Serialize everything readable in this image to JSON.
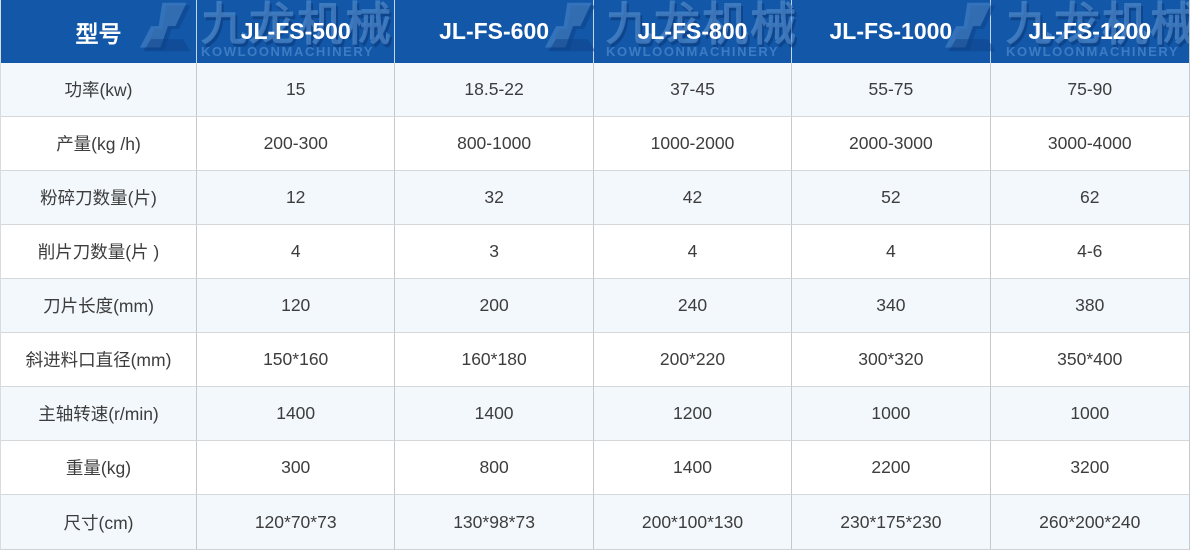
{
  "table": {
    "header": {
      "model_label": "型号",
      "models": [
        "JL-FS-500",
        "JL-FS-600",
        "JL-FS-800",
        "JL-FS-1000",
        "JL-FS-1200"
      ]
    },
    "rows": [
      {
        "label": "功率(kw)",
        "values": [
          "15",
          "18.5-22",
          "37-45",
          "55-75",
          "75-90"
        ]
      },
      {
        "label": "产量(kg /h)",
        "values": [
          "200-300",
          "800-1000",
          "1000-2000",
          "2000-3000",
          "3000-4000"
        ]
      },
      {
        "label": "粉碎刀数量(片)",
        "values": [
          "12",
          "32",
          "42",
          "52",
          "62"
        ]
      },
      {
        "label": "削片刀数量(片 )",
        "values": [
          "4",
          "3",
          "4",
          "4",
          "4-6"
        ]
      },
      {
        "label": "刀片长度(mm)",
        "values": [
          "120",
          "200",
          "240",
          "340",
          "380"
        ]
      },
      {
        "label": "斜进料口直径(mm)",
        "values": [
          "150*160",
          "160*180",
          "200*220",
          "300*320",
          "350*400"
        ]
      },
      {
        "label": "主轴转速(r/min)",
        "values": [
          "1400",
          "1400",
          "1200",
          "1000",
          "1000"
        ]
      },
      {
        "label": "重量(kg)",
        "values": [
          "300",
          "800",
          "1400",
          "2200",
          "3200"
        ]
      },
      {
        "label": "尺寸(cm)",
        "values": [
          "120*70*73",
          "130*98*73",
          "200*100*130",
          "230*175*230",
          "260*200*240"
        ]
      }
    ]
  },
  "watermark": {
    "brand_cn": "九龙机械",
    "brand_en": "KOWLOONMACHINERY"
  },
  "colors": {
    "header_bg": "#1357a8",
    "header_text": "#ffffff",
    "row_alt_bg": "#f3f8fc",
    "row_bg": "#ffffff",
    "cell_text": "#3d3d3d",
    "grid_border": "#c6cacd",
    "watermark_blue": "#3a76c4"
  }
}
